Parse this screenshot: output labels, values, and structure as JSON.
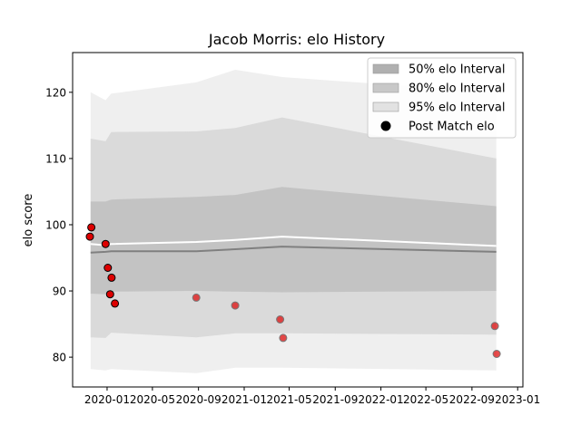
{
  "chart_data": {
    "type": "line",
    "title": "Jacob Morris: elo History",
    "xlabel": "",
    "ylabel": "elo score",
    "xlim": [
      "2019-10-01",
      "2023-01-15"
    ],
    "ylim": [
      75.5,
      126.0
    ],
    "x_ticks": [
      "2020-01",
      "2020-05",
      "2020-09",
      "2021-01",
      "2021-05",
      "2021-09",
      "2022-01",
      "2022-05",
      "2022-09",
      "2023-01"
    ],
    "y_ticks": [
      80,
      90,
      100,
      110,
      120
    ],
    "grid": false,
    "legend_position": "top-right",
    "legend": [
      {
        "key": "band50",
        "label": "50% elo Interval"
      },
      {
        "key": "band80",
        "label": "80% elo Interval"
      },
      {
        "key": "band95",
        "label": "95% elo Interval"
      },
      {
        "key": "points",
        "label": "Post Match elo"
      }
    ],
    "colors": {
      "band50": "#b0b0b0",
      "band80": "#c8c8c8",
      "band95": "#e2e2e2",
      "mean": "#ffffff",
      "median": "#808080",
      "point_fill": "#dd0000",
      "point_edge": "#000000",
      "point_edge_faded": "#777777"
    },
    "bands": {
      "dates": [
        "2019-11-18",
        "2019-12-28",
        "2020-01-12",
        "2020-08-26",
        "2020-12-08",
        "2021-04-12",
        "2022-11-05"
      ],
      "p95": [
        [
          78.2,
          120.0
        ],
        [
          78.0,
          118.8
        ],
        [
          78.2,
          119.8
        ],
        [
          77.6,
          121.5
        ],
        [
          78.4,
          123.4
        ],
        [
          78.4,
          122.3
        ],
        [
          78.0,
          120.0
        ]
      ],
      "p80": [
        [
          83.0,
          113.0
        ],
        [
          82.9,
          112.6
        ],
        [
          83.7,
          114.0
        ],
        [
          83.0,
          114.1
        ],
        [
          83.6,
          114.6
        ],
        [
          83.6,
          116.2
        ],
        [
          83.4,
          110.0
        ]
      ],
      "p50": [
        [
          89.6,
          103.5
        ],
        [
          89.5,
          103.5
        ],
        [
          89.9,
          103.8
        ],
        [
          90.0,
          104.2
        ],
        [
          89.9,
          104.5
        ],
        [
          89.8,
          105.7
        ],
        [
          90.0,
          102.8
        ]
      ],
      "mean": [
        97.1,
        96.9,
        97.1,
        97.4,
        97.7,
        98.2,
        96.8
      ],
      "median": [
        95.8,
        95.9,
        96.0,
        96.0,
        96.3,
        96.7,
        95.9
      ]
    },
    "points": [
      {
        "date": "2019-11-16",
        "value": 98.2
      },
      {
        "date": "2019-11-20",
        "value": 99.6
      },
      {
        "date": "2019-12-28",
        "value": 97.1
      },
      {
        "date": "2020-01-03",
        "value": 93.5
      },
      {
        "date": "2020-01-09",
        "value": 89.5
      },
      {
        "date": "2020-01-13",
        "value": 92.0
      },
      {
        "date": "2020-01-22",
        "value": 88.1
      },
      {
        "date": "2020-08-26",
        "value": 89.0
      },
      {
        "date": "2020-12-08",
        "value": 87.8
      },
      {
        "date": "2021-04-07",
        "value": 85.7
      },
      {
        "date": "2021-04-15",
        "value": 82.9
      },
      {
        "date": "2022-11-01",
        "value": 84.7
      },
      {
        "date": "2022-11-06",
        "value": 80.5
      }
    ]
  }
}
